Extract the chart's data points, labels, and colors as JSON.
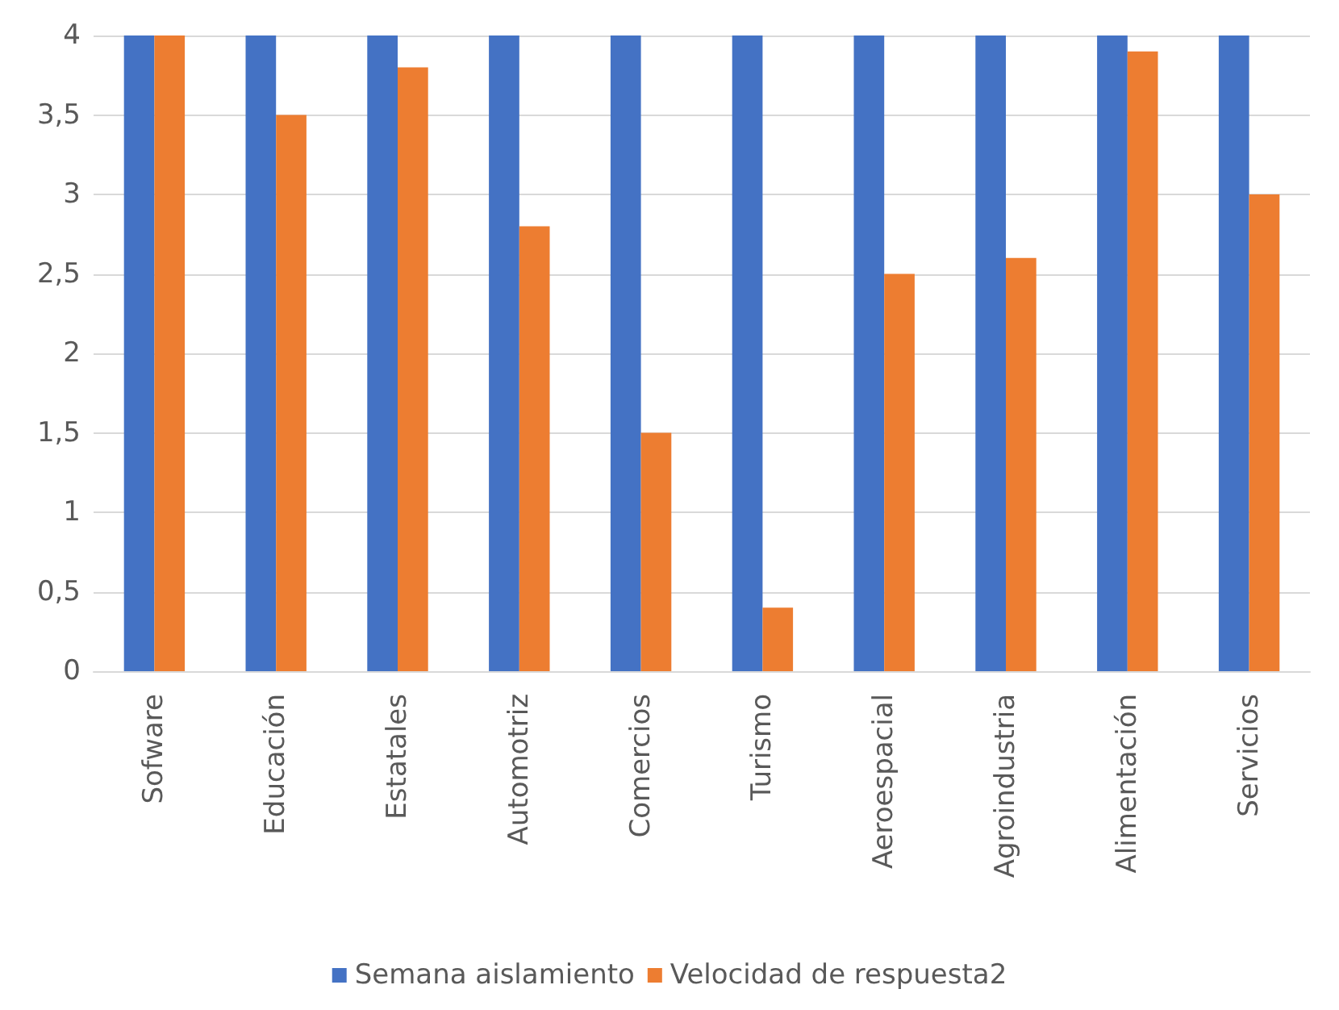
{
  "chart_data": {
    "type": "bar",
    "categories": [
      "Sofware",
      "Educación",
      "Estatales",
      "Automotriz",
      "Comercios",
      "Turismo",
      "Aeroespacial",
      "Agroindustria",
      "Alimentación",
      "Servicios"
    ],
    "series": [
      {
        "name": "Semana aislamiento",
        "color": "#4472c4",
        "values": [
          4,
          4,
          4,
          4,
          4,
          4,
          4,
          4,
          4,
          4
        ]
      },
      {
        "name": "Velocidad de respuesta2",
        "color": "#ed7d31",
        "values": [
          4,
          3.5,
          3.8,
          2.8,
          1.5,
          0.4,
          2.5,
          2.6,
          3.9,
          3
        ]
      }
    ],
    "ylim": [
      0,
      4
    ],
    "yticks": [
      0,
      {
        "value": 0.5,
        "label": "0,5"
      },
      1,
      {
        "value": 1.5,
        "label": "1,5"
      },
      2,
      {
        "value": 2.5,
        "label": "2,5"
      },
      3,
      {
        "value": 3.5,
        "label": "3,5"
      },
      4
    ],
    "grid": "y",
    "legend": "bottom"
  }
}
